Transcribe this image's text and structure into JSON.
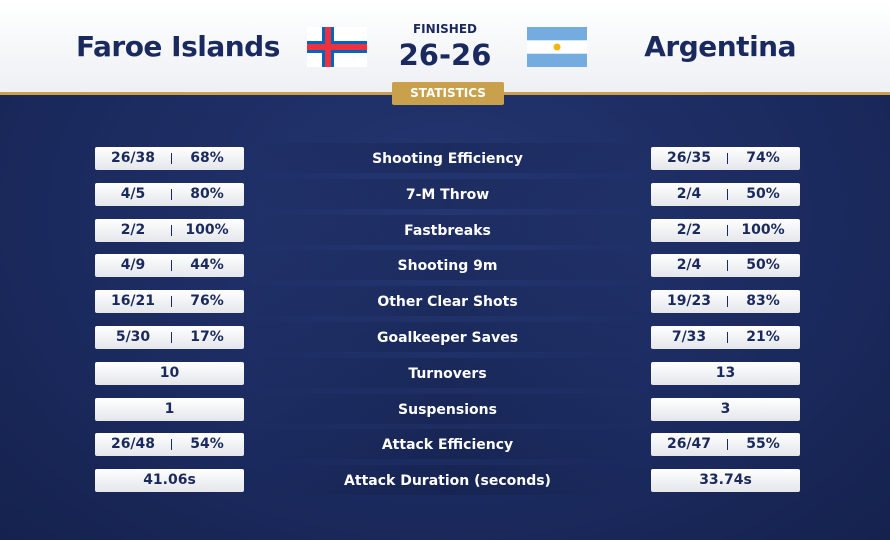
{
  "header": {
    "home_team": "Faroe Islands",
    "away_team": "Argentina",
    "status": "FINISHED",
    "score": "26-26",
    "tab": "STATISTICS"
  },
  "stats": [
    {
      "label": "Shooting Efficiency",
      "home": [
        "26/38",
        "68%"
      ],
      "away": [
        "26/35",
        "74%"
      ]
    },
    {
      "label": "7-M Throw",
      "home": [
        "4/5",
        "80%"
      ],
      "away": [
        "2/4",
        "50%"
      ]
    },
    {
      "label": "Fastbreaks",
      "home": [
        "2/2",
        "100%"
      ],
      "away": [
        "2/2",
        "100%"
      ]
    },
    {
      "label": "Shooting 9m",
      "home": [
        "4/9",
        "44%"
      ],
      "away": [
        "2/4",
        "50%"
      ]
    },
    {
      "label": "Other Clear Shots",
      "home": [
        "16/21",
        "76%"
      ],
      "away": [
        "19/23",
        "83%"
      ]
    },
    {
      "label": "Goalkeeper Saves",
      "home": [
        "5/30",
        "17%"
      ],
      "away": [
        "7/33",
        "21%"
      ]
    },
    {
      "label": "Turnovers",
      "home": [
        "10"
      ],
      "away": [
        "13"
      ]
    },
    {
      "label": "Suspensions",
      "home": [
        "1"
      ],
      "away": [
        "3"
      ]
    },
    {
      "label": "Attack Efficiency",
      "home": [
        "26/48",
        "54%"
      ],
      "away": [
        "26/47",
        "55%"
      ]
    },
    {
      "label": "Attack Duration (seconds)",
      "home": [
        "41.06s"
      ],
      "away": [
        "33.74s"
      ]
    }
  ]
}
